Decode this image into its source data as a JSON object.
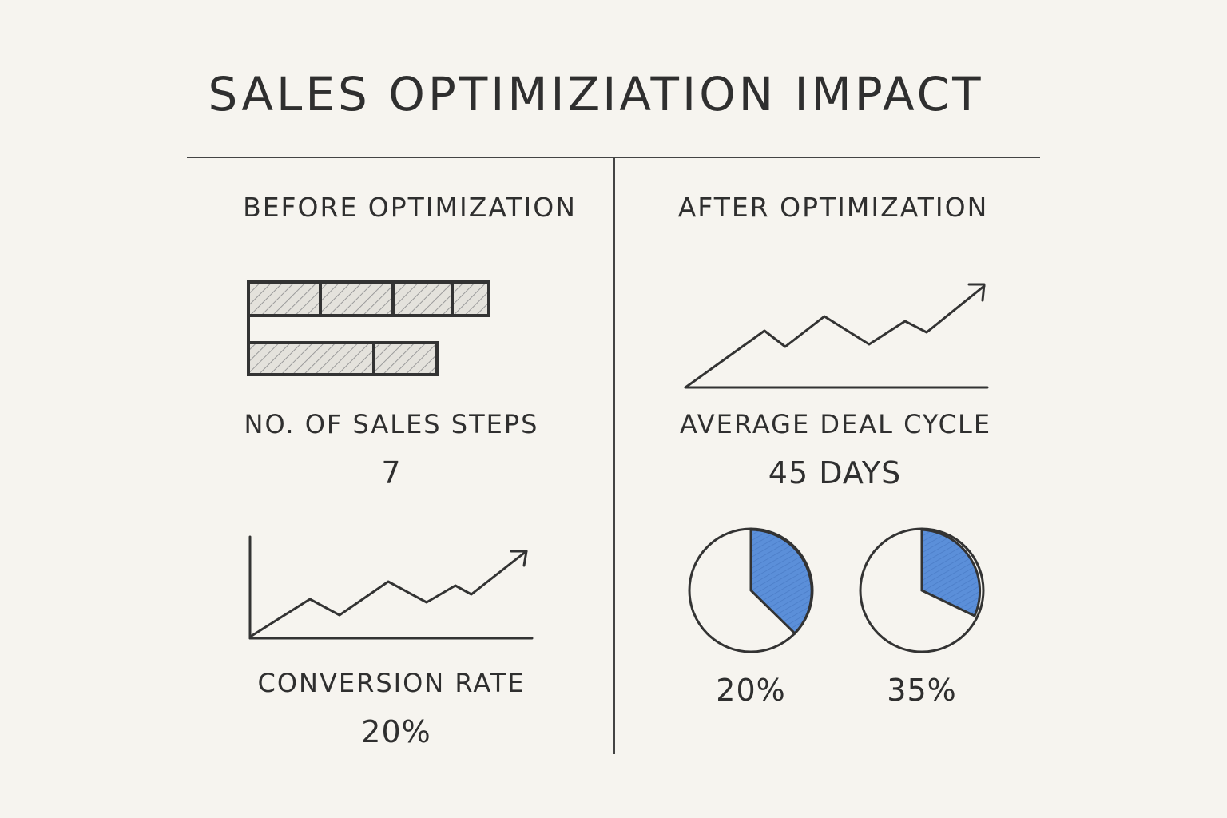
{
  "title": "SALES OPTIMIZIATION IMPACT",
  "before": {
    "heading": "BEFORE OPTIMIZATION",
    "sales_steps": {
      "label": "NO. OF SALES STEPS",
      "value": "7"
    },
    "conversion": {
      "label": "CONVERSION RATE",
      "value": "20%"
    }
  },
  "after": {
    "heading": "AFTER OPTIMIZATION",
    "deal_cycle": {
      "label": "AVERAGE DEAL CYCLE",
      "value": "45 DAYS"
    },
    "pies": [
      {
        "value": "20%"
      },
      {
        "value": "35%"
      }
    ]
  },
  "colors": {
    "background": "#f6f4ef",
    "ink": "#2f2f2f",
    "pie_fill": "#5b8fd9",
    "bar_hatch": "#9a9a9a"
  },
  "icons": [
    "stacked-bar-icon",
    "trend-line-icon",
    "pie-icon"
  ]
}
